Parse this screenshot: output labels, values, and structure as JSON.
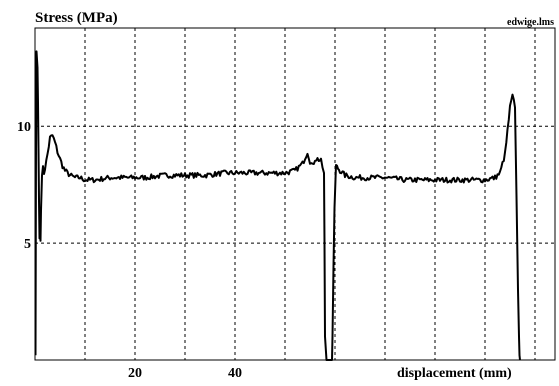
{
  "chart_data": {
    "type": "line",
    "title": "",
    "file_label": "edwige.lms",
    "ylabel": "Stress (MPa)",
    "xlabel": "displacement (mm)",
    "xlim": [
      0,
      104
    ],
    "ylim": [
      0,
      14.2
    ],
    "x_ticks": [
      20,
      40
    ],
    "y_ticks": [
      5,
      10
    ],
    "x_gridlines": [
      10,
      20,
      30,
      40,
      50,
      60,
      70,
      80,
      90,
      100
    ],
    "y_gridlines": [
      5,
      10
    ],
    "grid": "dashed",
    "legend": "none",
    "line_color": "#000000",
    "series": [
      {
        "x": [
          0.1,
          0.2,
          0.3,
          0.5,
          0.6,
          0.7,
          0.8,
          0.9,
          1.0,
          1.1,
          1.2,
          1.4,
          1.6,
          1.8,
          2.0,
          2.5,
          3.0,
          3.5,
          4.0,
          4.5,
          5.0,
          5.5,
          6.0,
          7.0,
          8.0,
          9.0,
          10.0,
          12.0,
          15.0,
          18.0,
          22.0,
          26.0,
          30.0,
          34.0,
          38.0,
          42.0,
          46.0,
          50.0,
          52.0,
          53.5,
          54.5,
          55.0,
          55.5,
          56.0,
          56.5,
          57.2,
          57.8,
          57.9,
          58.0,
          58.3,
          58.8,
          59.4,
          59.5,
          59.7,
          59.9,
          60.2,
          60.6,
          61.0,
          61.5,
          62.0,
          64.0,
          66.0,
          68.0,
          70.0,
          74.0,
          78.0,
          82.0,
          86.0,
          90.0,
          92.0,
          93.0,
          94.0,
          94.5,
          95.0,
          95.5,
          96.0,
          96.3,
          96.6,
          96.8,
          96.9,
          97.0
        ],
        "y": [
          0.2,
          9.0,
          13.2,
          12.5,
          11.0,
          9.0,
          6.8,
          5.2,
          5.6,
          5.1,
          6.4,
          8.0,
          8.2,
          8.0,
          8.2,
          8.8,
          9.5,
          9.6,
          9.3,
          8.9,
          8.6,
          8.3,
          8.1,
          7.9,
          7.8,
          7.8,
          7.7,
          7.7,
          7.8,
          7.8,
          7.8,
          7.9,
          7.9,
          7.9,
          8.0,
          8.0,
          8.0,
          8.0,
          8.1,
          8.4,
          8.9,
          8.5,
          8.3,
          8.6,
          8.6,
          8.5,
          8.0,
          5.0,
          1.0,
          0.0,
          0.0,
          0.0,
          1.0,
          4.0,
          6.5,
          8.3,
          8.2,
          8.1,
          8.0,
          7.9,
          7.8,
          7.8,
          7.8,
          7.8,
          7.7,
          7.7,
          7.7,
          7.7,
          7.7,
          7.8,
          8.0,
          8.8,
          9.8,
          10.8,
          11.3,
          10.8,
          7.0,
          3.0,
          1.0,
          0.2,
          0.0
        ]
      }
    ]
  }
}
